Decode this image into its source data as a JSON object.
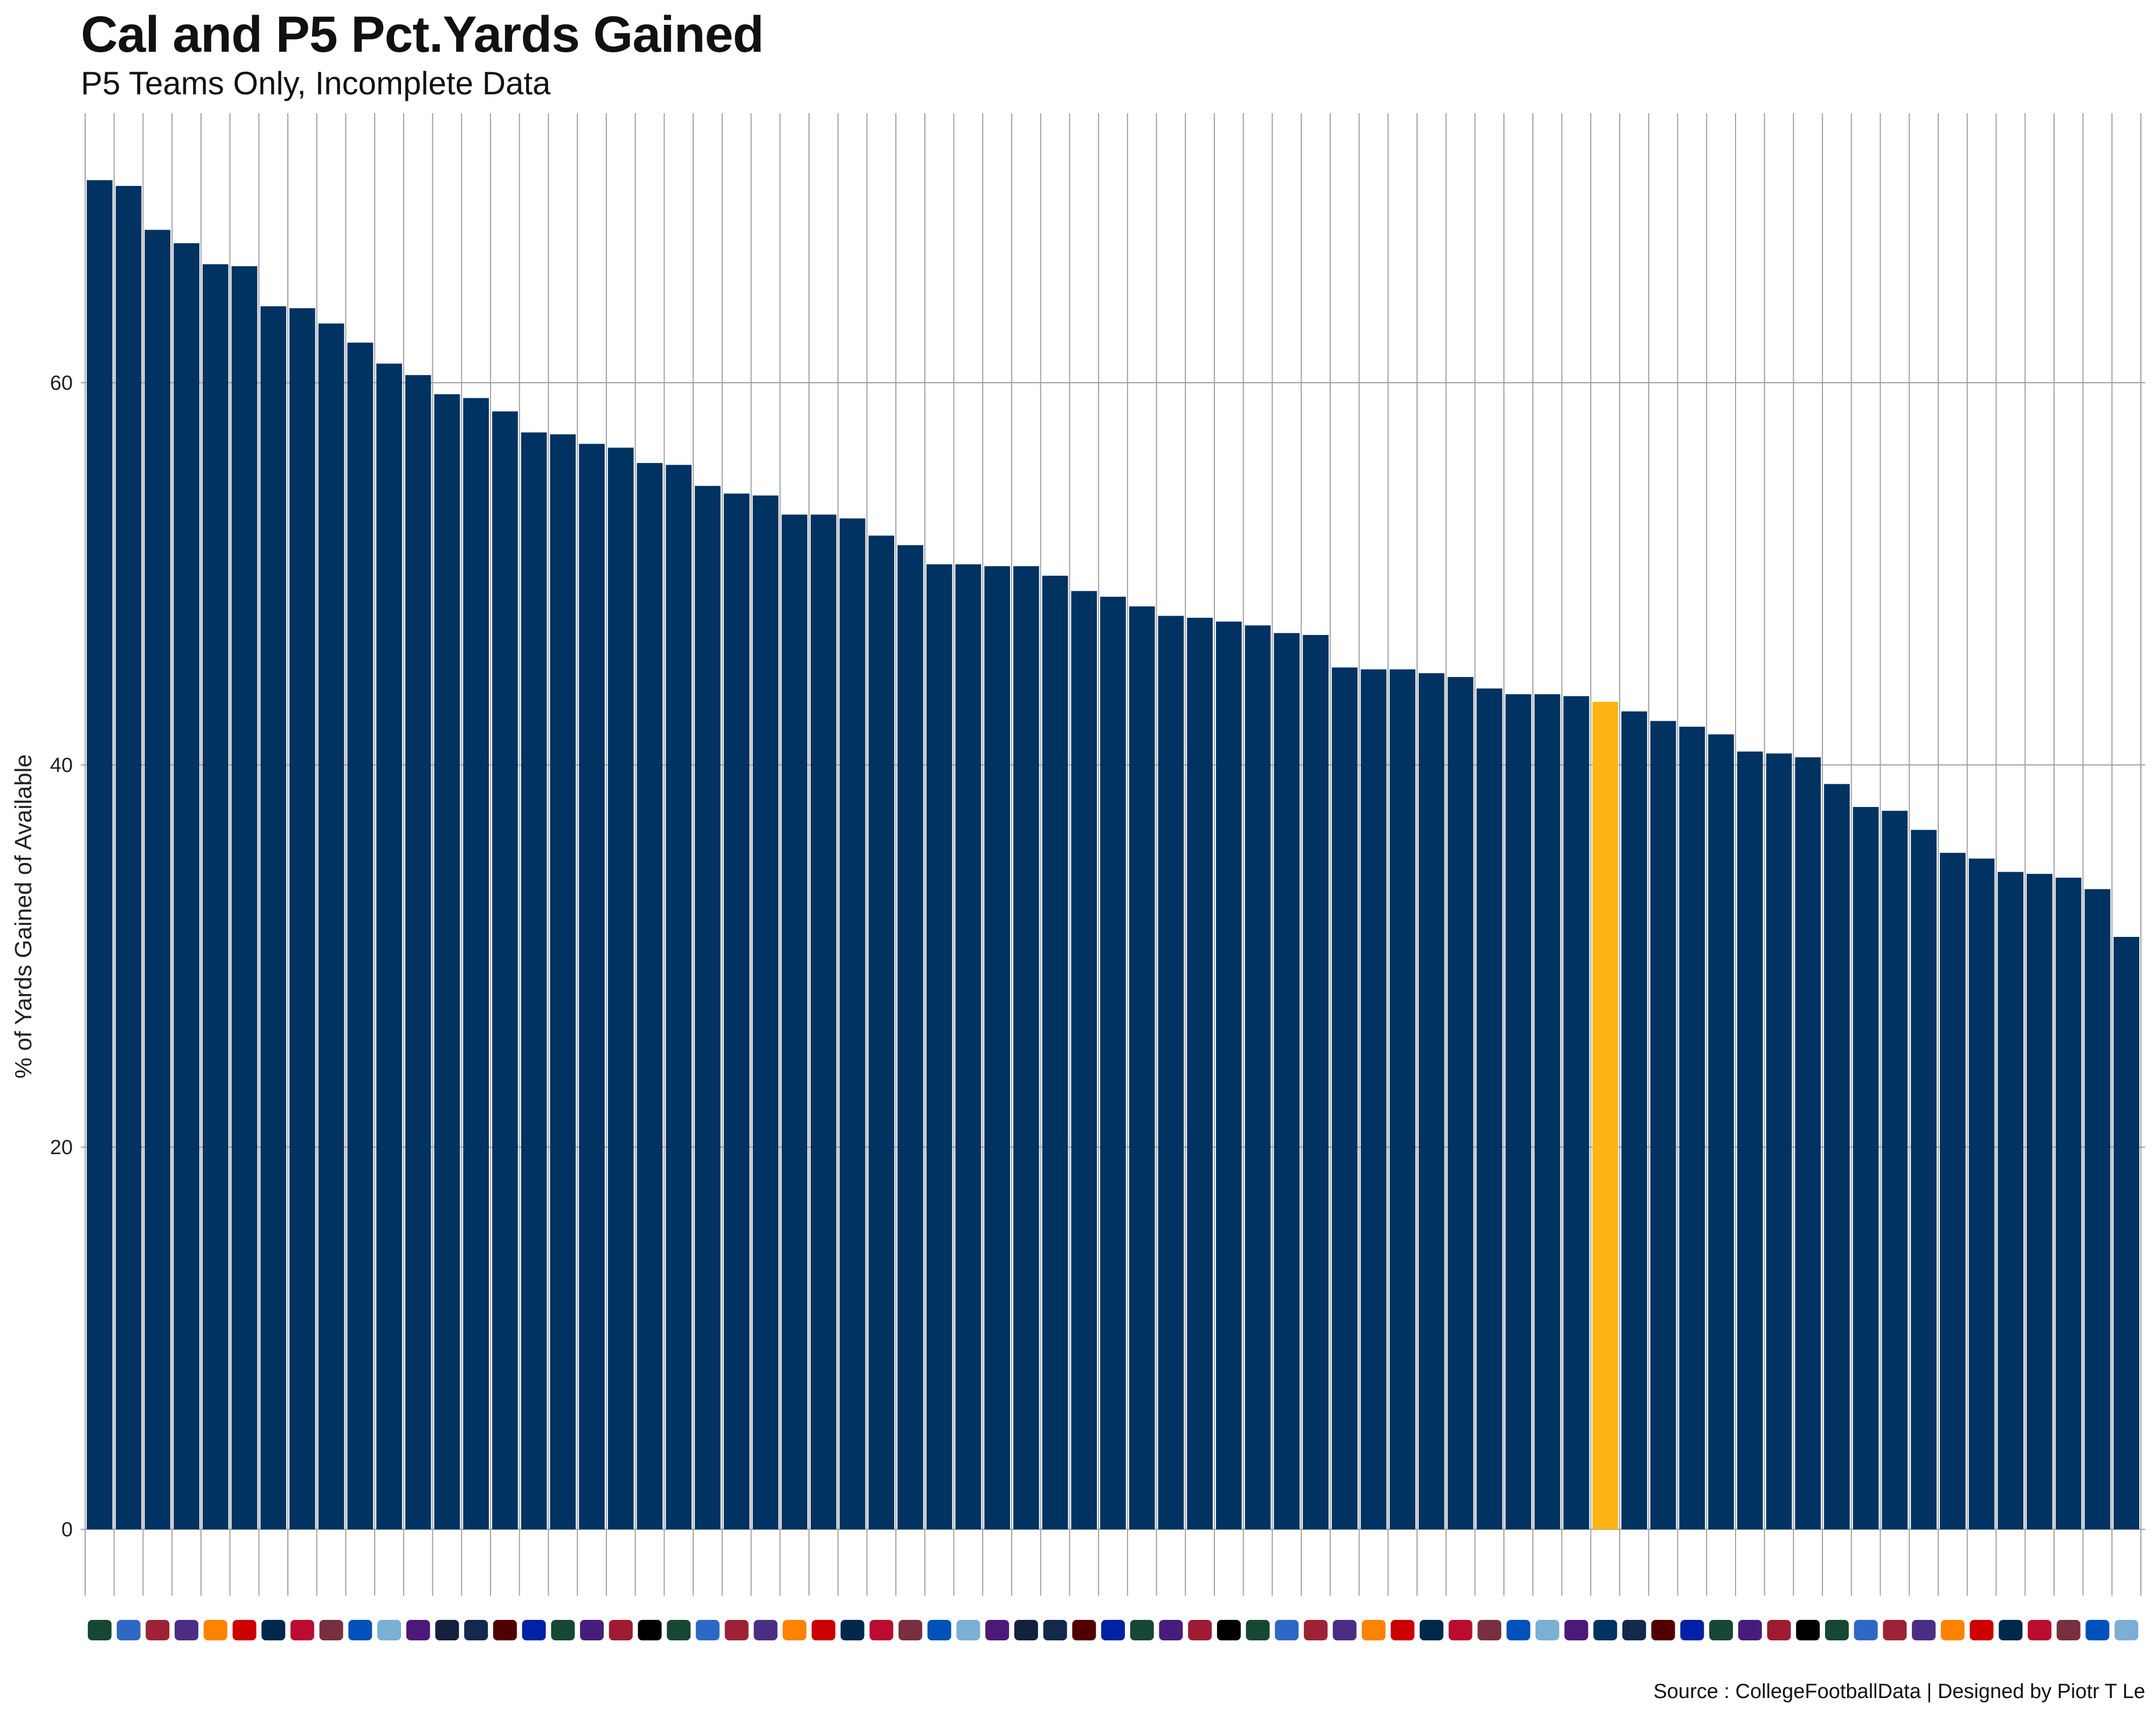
{
  "chart_data": {
    "type": "bar",
    "title": "Cal and P5  Pct.Yards Gained",
    "subtitle": "P5 Teams Only, Incomplete Data",
    "ylabel": "% of Yards Gained of Available",
    "source": "Source : CollegeFootballData | Designed by Piotr T Le",
    "ylim": [
      0,
      70
    ],
    "yticks": [
      0,
      20,
      40,
      60
    ],
    "grid": true,
    "bar_color": "#003262",
    "highlight_color": "#FDB515",
    "highlight_index": 52,
    "x_axis_note": "team logos",
    "values": [
      70.6,
      70.3,
      68.0,
      67.3,
      66.2,
      66.1,
      64.0,
      63.9,
      63.1,
      62.1,
      61.0,
      60.4,
      59.4,
      59.2,
      58.5,
      57.4,
      57.3,
      56.8,
      56.6,
      55.8,
      55.7,
      54.6,
      54.2,
      54.1,
      53.1,
      53.1,
      52.9,
      52.0,
      51.5,
      50.5,
      50.5,
      50.4,
      50.4,
      49.9,
      49.1,
      48.8,
      48.3,
      47.8,
      47.7,
      47.5,
      47.3,
      46.9,
      46.8,
      45.1,
      45.0,
      45.0,
      44.8,
      44.6,
      44.0,
      43.7,
      43.7,
      43.6,
      43.3,
      42.8,
      42.3,
      42.0,
      41.6,
      40.7,
      40.6,
      40.4,
      39.0,
      37.8,
      37.6,
      36.6,
      35.4,
      35.1,
      34.4,
      34.3,
      34.1,
      33.5,
      31.0
    ]
  }
}
